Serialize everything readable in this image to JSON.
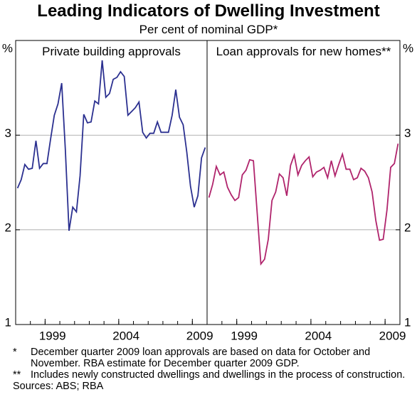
{
  "title": "Leading Indicators of Dwelling Investment",
  "subtitle": "Per cent of nominal GDP*",
  "y_unit": "%",
  "footnotes": [
    {
      "marker": "*",
      "text": "December quarter 2009 loan approvals are based on data for October and November. RBA estimate for December quarter 2009 GDP."
    },
    {
      "marker": "**",
      "text": "Includes newly constructed dwellings and dwellings in the process of construction."
    }
  ],
  "sources": "Sources: ABS; RBA",
  "chart_data": [
    {
      "type": "line",
      "title": "Private building approvals",
      "color": "#2b3090",
      "x": [
        1997.125,
        1997.375,
        1997.625,
        1997.875,
        1998.125,
        1998.375,
        1998.625,
        1998.875,
        1999.125,
        1999.375,
        1999.625,
        1999.875,
        2000.125,
        2000.375,
        2000.625,
        2000.875,
        2001.125,
        2001.375,
        2001.625,
        2001.875,
        2002.125,
        2002.375,
        2002.625,
        2002.875,
        2003.125,
        2003.375,
        2003.625,
        2003.875,
        2004.125,
        2004.375,
        2004.625,
        2004.875,
        2005.125,
        2005.375,
        2005.625,
        2005.875,
        2006.125,
        2006.375,
        2006.625,
        2006.875,
        2007.125,
        2007.375,
        2007.625,
        2007.875,
        2008.125,
        2008.375,
        2008.625,
        2008.875,
        2009.125,
        2009.375,
        2009.625,
        2009.875
      ],
      "values": [
        2.44,
        2.53,
        2.69,
        2.64,
        2.65,
        2.94,
        2.65,
        2.7,
        2.7,
        2.96,
        3.21,
        3.33,
        3.55,
        2.85,
        1.99,
        2.24,
        2.19,
        2.57,
        3.22,
        3.13,
        3.14,
        3.36,
        3.33,
        3.79,
        3.4,
        3.44,
        3.59,
        3.61,
        3.67,
        3.62,
        3.21,
        3.25,
        3.29,
        3.35,
        3.03,
        2.97,
        3.02,
        3.02,
        3.14,
        3.03,
        3.03,
        3.03,
        3.21,
        3.48,
        3.19,
        3.11,
        2.82,
        2.46,
        2.24,
        2.36,
        2.76,
        2.87
      ],
      "xlim": [
        1997,
        2010
      ],
      "xticks": [
        1999,
        2004,
        2009
      ],
      "ylim": [
        1,
        4
      ],
      "yticks": [
        1,
        2,
        3
      ],
      "grid": true
    },
    {
      "type": "line",
      "title": "Loan approvals for new homes**",
      "color": "#b0246c",
      "x": [
        1997.125,
        1997.375,
        1997.625,
        1997.875,
        1998.125,
        1998.375,
        1998.625,
        1998.875,
        1999.125,
        1999.375,
        1999.625,
        1999.875,
        2000.125,
        2000.375,
        2000.625,
        2000.875,
        2001.125,
        2001.375,
        2001.625,
        2001.875,
        2002.125,
        2002.375,
        2002.625,
        2002.875,
        2003.125,
        2003.375,
        2003.625,
        2003.875,
        2004.125,
        2004.375,
        2004.625,
        2004.875,
        2005.125,
        2005.375,
        2005.625,
        2005.875,
        2006.125,
        2006.375,
        2006.625,
        2006.875,
        2007.125,
        2007.375,
        2007.625,
        2007.875,
        2008.125,
        2008.375,
        2008.625,
        2008.875,
        2009.125,
        2009.375,
        2009.625,
        2009.875
      ],
      "values": [
        2.34,
        2.48,
        2.67,
        2.58,
        2.61,
        2.45,
        2.37,
        2.31,
        2.34,
        2.58,
        2.63,
        2.74,
        2.73,
        2.18,
        1.64,
        1.69,
        1.9,
        2.31,
        2.4,
        2.59,
        2.55,
        2.36,
        2.68,
        2.79,
        2.58,
        2.68,
        2.73,
        2.77,
        2.56,
        2.61,
        2.63,
        2.66,
        2.55,
        2.73,
        2.57,
        2.69,
        2.8,
        2.64,
        2.64,
        2.53,
        2.55,
        2.65,
        2.62,
        2.55,
        2.4,
        2.1,
        1.89,
        1.9,
        2.21,
        2.66,
        2.7,
        2.91
      ],
      "xlim": [
        1997,
        2010
      ],
      "xticks": [
        1999,
        2004,
        2009
      ],
      "ylim": [
        1,
        4
      ],
      "yticks": [
        1,
        2,
        3
      ],
      "grid": true
    }
  ]
}
